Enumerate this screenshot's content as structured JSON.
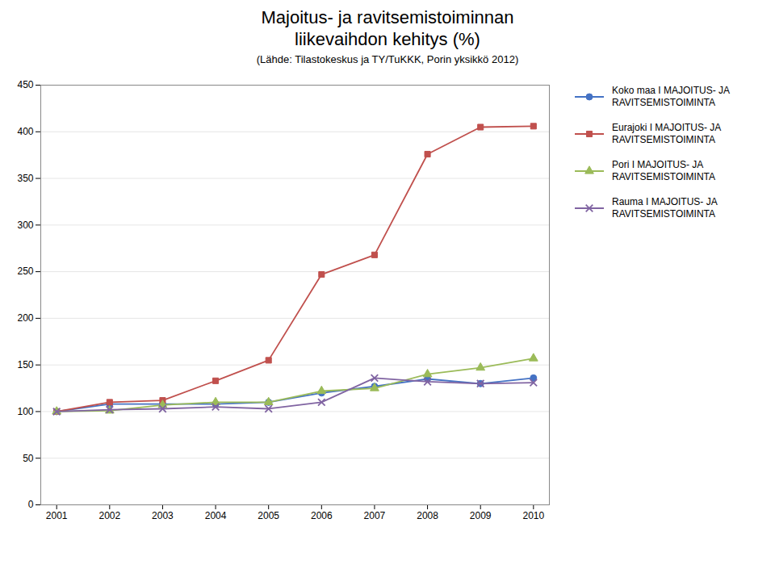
{
  "chart_data": {
    "type": "line",
    "title": "Majoitus- ja ravitsemistoiminnan\nliikevaihdon kehitys (%)",
    "subtitle": "(Lähde: Tilastokeskus ja TY/TuKKK, Porin yksikkö 2012)",
    "x": [
      2001,
      2002,
      2003,
      2004,
      2005,
      2006,
      2007,
      2008,
      2009,
      2010
    ],
    "series": [
      {
        "name": "Koko maa I MAJOITUS- JA\nRAVITSEMISTOIMINTA",
        "color": "#4472C4",
        "marker": "circle",
        "values": [
          100,
          108,
          108,
          108,
          110,
          120,
          127,
          135,
          130,
          136
        ]
      },
      {
        "name": "Eurajoki I MAJOITUS- JA\nRAVITSEMISTOIMINTA",
        "color": "#C0504D",
        "marker": "square",
        "values": [
          100,
          110,
          112,
          133,
          155,
          247,
          268,
          376,
          405,
          406
        ]
      },
      {
        "name": "Pori I MAJOITUS- JA\nRAVITSEMISTOIMINTA",
        "color": "#9BBB59",
        "marker": "triangle",
        "values": [
          100,
          101,
          107,
          110,
          110,
          122,
          125,
          140,
          147,
          157
        ]
      },
      {
        "name": "Rauma I MAJOITUS- JA\nRAVITSEMISTOIMINTA",
        "color": "#8064A2",
        "marker": "times",
        "values": [
          100,
          102,
          103,
          105,
          103,
          110,
          136,
          132,
          130,
          131
        ]
      }
    ],
    "xlim": [
      2000.7,
      2010.3
    ],
    "xticks": [
      2001,
      2002,
      2003,
      2004,
      2005,
      2006,
      2007,
      2008,
      2009,
      2010
    ],
    "ylim": [
      0,
      450
    ],
    "yticks": [
      0,
      50,
      100,
      150,
      200,
      250,
      300,
      350,
      400,
      450
    ],
    "grid": "y",
    "legend": "right"
  }
}
